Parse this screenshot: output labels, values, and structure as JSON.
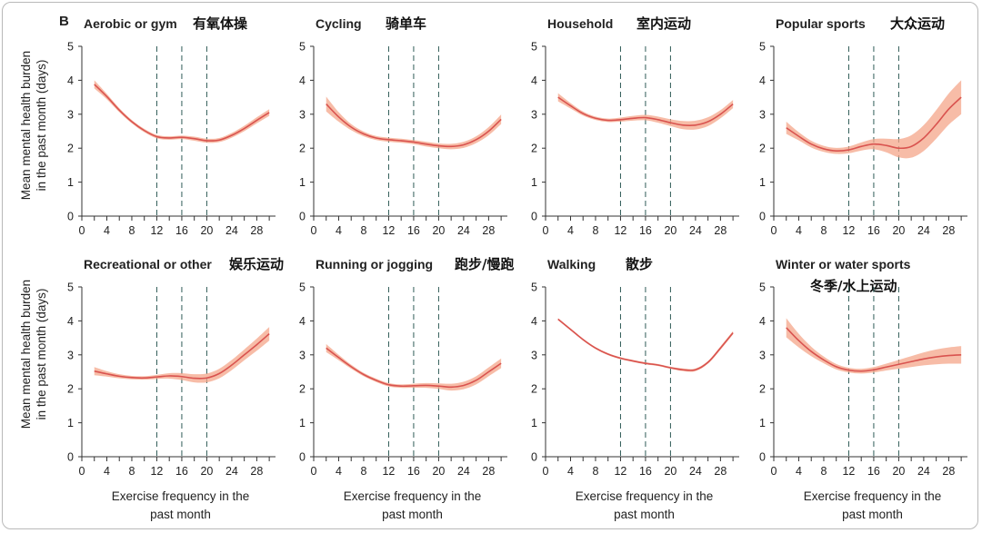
{
  "figure": {
    "panel_letter": "B",
    "ylabel_lines": [
      "Mean mental health burden",
      "in the past month (days)"
    ],
    "xlabel_lines": [
      "Exercise frequency in the",
      "past month"
    ],
    "line_color": "#d9534f",
    "band_color": "#f4a58a",
    "vline_color": "#2f5b57"
  },
  "chart_data": [
    {
      "type": "line",
      "title": "Aerobic or gym",
      "title_cn": "有氧体操",
      "x": [
        2,
        4,
        6,
        8,
        10,
        12,
        14,
        16,
        18,
        20,
        22,
        24,
        26,
        28,
        30
      ],
      "y": [
        3.88,
        3.52,
        3.12,
        2.78,
        2.52,
        2.34,
        2.3,
        2.32,
        2.28,
        2.22,
        2.24,
        2.38,
        2.58,
        2.82,
        3.05
      ],
      "ci_width": [
        0.12,
        0.08,
        0.06,
        0.05,
        0.05,
        0.05,
        0.05,
        0.05,
        0.06,
        0.06,
        0.06,
        0.07,
        0.08,
        0.09,
        0.1
      ],
      "reference_lines_x": [
        12,
        16,
        20
      ],
      "xlim": [
        0,
        31
      ],
      "ylim": [
        0,
        5
      ],
      "xticks": [
        0,
        4,
        8,
        12,
        16,
        20,
        24,
        28
      ],
      "yticks": [
        0,
        1,
        2,
        3,
        4,
        5
      ]
    },
    {
      "type": "line",
      "title": "Cycling",
      "title_cn": "骑单车",
      "x": [
        2,
        4,
        6,
        8,
        10,
        12,
        14,
        16,
        18,
        20,
        22,
        24,
        26,
        28,
        30
      ],
      "y": [
        3.3,
        2.92,
        2.62,
        2.42,
        2.3,
        2.25,
        2.22,
        2.18,
        2.12,
        2.07,
        2.05,
        2.1,
        2.25,
        2.5,
        2.85
      ],
      "ci_width": [
        0.22,
        0.14,
        0.09,
        0.07,
        0.06,
        0.06,
        0.06,
        0.06,
        0.07,
        0.07,
        0.08,
        0.09,
        0.1,
        0.12,
        0.14
      ],
      "reference_lines_x": [
        12,
        16,
        20
      ],
      "xlim": [
        0,
        31
      ],
      "ylim": [
        0,
        5
      ],
      "xticks": [
        0,
        4,
        8,
        12,
        16,
        20,
        24,
        28
      ],
      "yticks": [
        0,
        1,
        2,
        3,
        4,
        5
      ]
    },
    {
      "type": "line",
      "title": "Household",
      "title_cn": "室内运动",
      "x": [
        2,
        4,
        6,
        8,
        10,
        12,
        14,
        16,
        18,
        20,
        22,
        24,
        26,
        28,
        30
      ],
      "y": [
        3.5,
        3.25,
        3.02,
        2.88,
        2.82,
        2.84,
        2.88,
        2.9,
        2.84,
        2.75,
        2.68,
        2.68,
        2.78,
        3.0,
        3.3
      ],
      "ci_width": [
        0.12,
        0.08,
        0.06,
        0.05,
        0.05,
        0.06,
        0.07,
        0.08,
        0.09,
        0.1,
        0.12,
        0.13,
        0.13,
        0.12,
        0.12
      ],
      "reference_lines_x": [
        12,
        16,
        20
      ],
      "xlim": [
        0,
        31
      ],
      "ylim": [
        0,
        5
      ],
      "xticks": [
        0,
        4,
        8,
        12,
        16,
        20,
        24,
        28
      ],
      "yticks": [
        0,
        1,
        2,
        3,
        4,
        5
      ]
    },
    {
      "type": "line",
      "title": "Popular sports",
      "title_cn": "大众运动",
      "x": [
        2,
        4,
        6,
        8,
        10,
        12,
        14,
        16,
        18,
        20,
        22,
        24,
        26,
        28,
        30
      ],
      "y": [
        2.6,
        2.35,
        2.12,
        1.98,
        1.92,
        1.95,
        2.05,
        2.12,
        2.08,
        2.0,
        2.05,
        2.3,
        2.7,
        3.15,
        3.5
      ],
      "ci_width": [
        0.18,
        0.12,
        0.1,
        0.09,
        0.09,
        0.1,
        0.12,
        0.15,
        0.2,
        0.27,
        0.33,
        0.38,
        0.42,
        0.46,
        0.5
      ],
      "reference_lines_x": [
        12,
        16,
        20
      ],
      "xlim": [
        0,
        31
      ],
      "ylim": [
        0,
        5
      ],
      "xticks": [
        0,
        4,
        8,
        12,
        16,
        20,
        24,
        28
      ],
      "yticks": [
        0,
        1,
        2,
        3,
        4,
        5
      ]
    },
    {
      "type": "line",
      "title": "Recreational or other",
      "title_cn": "娱乐运动",
      "x": [
        2,
        4,
        6,
        8,
        10,
        12,
        14,
        16,
        18,
        20,
        22,
        24,
        26,
        28,
        30
      ],
      "y": [
        2.52,
        2.44,
        2.37,
        2.33,
        2.32,
        2.35,
        2.38,
        2.36,
        2.31,
        2.32,
        2.45,
        2.7,
        3.0,
        3.3,
        3.62
      ],
      "ci_width": [
        0.12,
        0.08,
        0.06,
        0.05,
        0.05,
        0.06,
        0.08,
        0.1,
        0.12,
        0.13,
        0.14,
        0.15,
        0.16,
        0.18,
        0.2
      ],
      "reference_lines_x": [
        12,
        16,
        20
      ],
      "xlim": [
        0,
        31
      ],
      "ylim": [
        0,
        5
      ],
      "xticks": [
        0,
        4,
        8,
        12,
        16,
        20,
        24,
        28
      ],
      "yticks": [
        0,
        1,
        2,
        3,
        4,
        5
      ]
    },
    {
      "type": "line",
      "title": "Running or jogging",
      "title_cn": "跑步/慢跑",
      "x": [
        2,
        4,
        6,
        8,
        10,
        12,
        14,
        16,
        18,
        20,
        22,
        24,
        26,
        28,
        30
      ],
      "y": [
        3.2,
        2.92,
        2.65,
        2.42,
        2.25,
        2.12,
        2.08,
        2.09,
        2.1,
        2.08,
        2.05,
        2.1,
        2.25,
        2.5,
        2.75
      ],
      "ci_width": [
        0.12,
        0.08,
        0.06,
        0.05,
        0.05,
        0.05,
        0.05,
        0.06,
        0.07,
        0.08,
        0.1,
        0.11,
        0.12,
        0.13,
        0.14
      ],
      "reference_lines_x": [
        12,
        16,
        20
      ],
      "xlim": [
        0,
        31
      ],
      "ylim": [
        0,
        5
      ],
      "xticks": [
        0,
        4,
        8,
        12,
        16,
        20,
        24,
        28
      ],
      "yticks": [
        0,
        1,
        2,
        3,
        4,
        5
      ]
    },
    {
      "type": "line",
      "title": "Walking",
      "title_cn": "散步",
      "x": [
        2,
        4,
        6,
        8,
        10,
        12,
        14,
        16,
        18,
        20,
        22,
        24,
        26,
        28,
        30
      ],
      "y": [
        4.05,
        3.75,
        3.45,
        3.2,
        3.02,
        2.9,
        2.82,
        2.75,
        2.7,
        2.62,
        2.56,
        2.56,
        2.78,
        3.2,
        3.65
      ],
      "ci_width": [
        0.03,
        0.03,
        0.03,
        0.03,
        0.03,
        0.03,
        0.03,
        0.03,
        0.03,
        0.03,
        0.04,
        0.04,
        0.04,
        0.05,
        0.05
      ],
      "reference_lines_x": [
        12,
        16,
        20
      ],
      "xlim": [
        0,
        31
      ],
      "ylim": [
        0,
        5
      ],
      "xticks": [
        0,
        4,
        8,
        12,
        16,
        20,
        24,
        28
      ],
      "yticks": [
        0,
        1,
        2,
        3,
        4,
        5
      ]
    },
    {
      "type": "line",
      "title": "Winter or water sports",
      "title_cn": "冬季/水上运动",
      "x": [
        2,
        4,
        6,
        8,
        10,
        12,
        14,
        16,
        18,
        20,
        22,
        24,
        26,
        28,
        30
      ],
      "y": [
        3.8,
        3.42,
        3.1,
        2.85,
        2.65,
        2.55,
        2.52,
        2.56,
        2.64,
        2.72,
        2.8,
        2.88,
        2.94,
        2.98,
        3.0
      ],
      "ci_width": [
        0.28,
        0.2,
        0.14,
        0.1,
        0.08,
        0.07,
        0.07,
        0.08,
        0.1,
        0.13,
        0.16,
        0.19,
        0.22,
        0.24,
        0.26
      ],
      "reference_lines_x": [
        12,
        16,
        20
      ],
      "xlim": [
        0,
        31
      ],
      "ylim": [
        0,
        5
      ],
      "xticks": [
        0,
        4,
        8,
        12,
        16,
        20,
        24,
        28
      ],
      "yticks": [
        0,
        1,
        2,
        3,
        4,
        5
      ]
    }
  ]
}
